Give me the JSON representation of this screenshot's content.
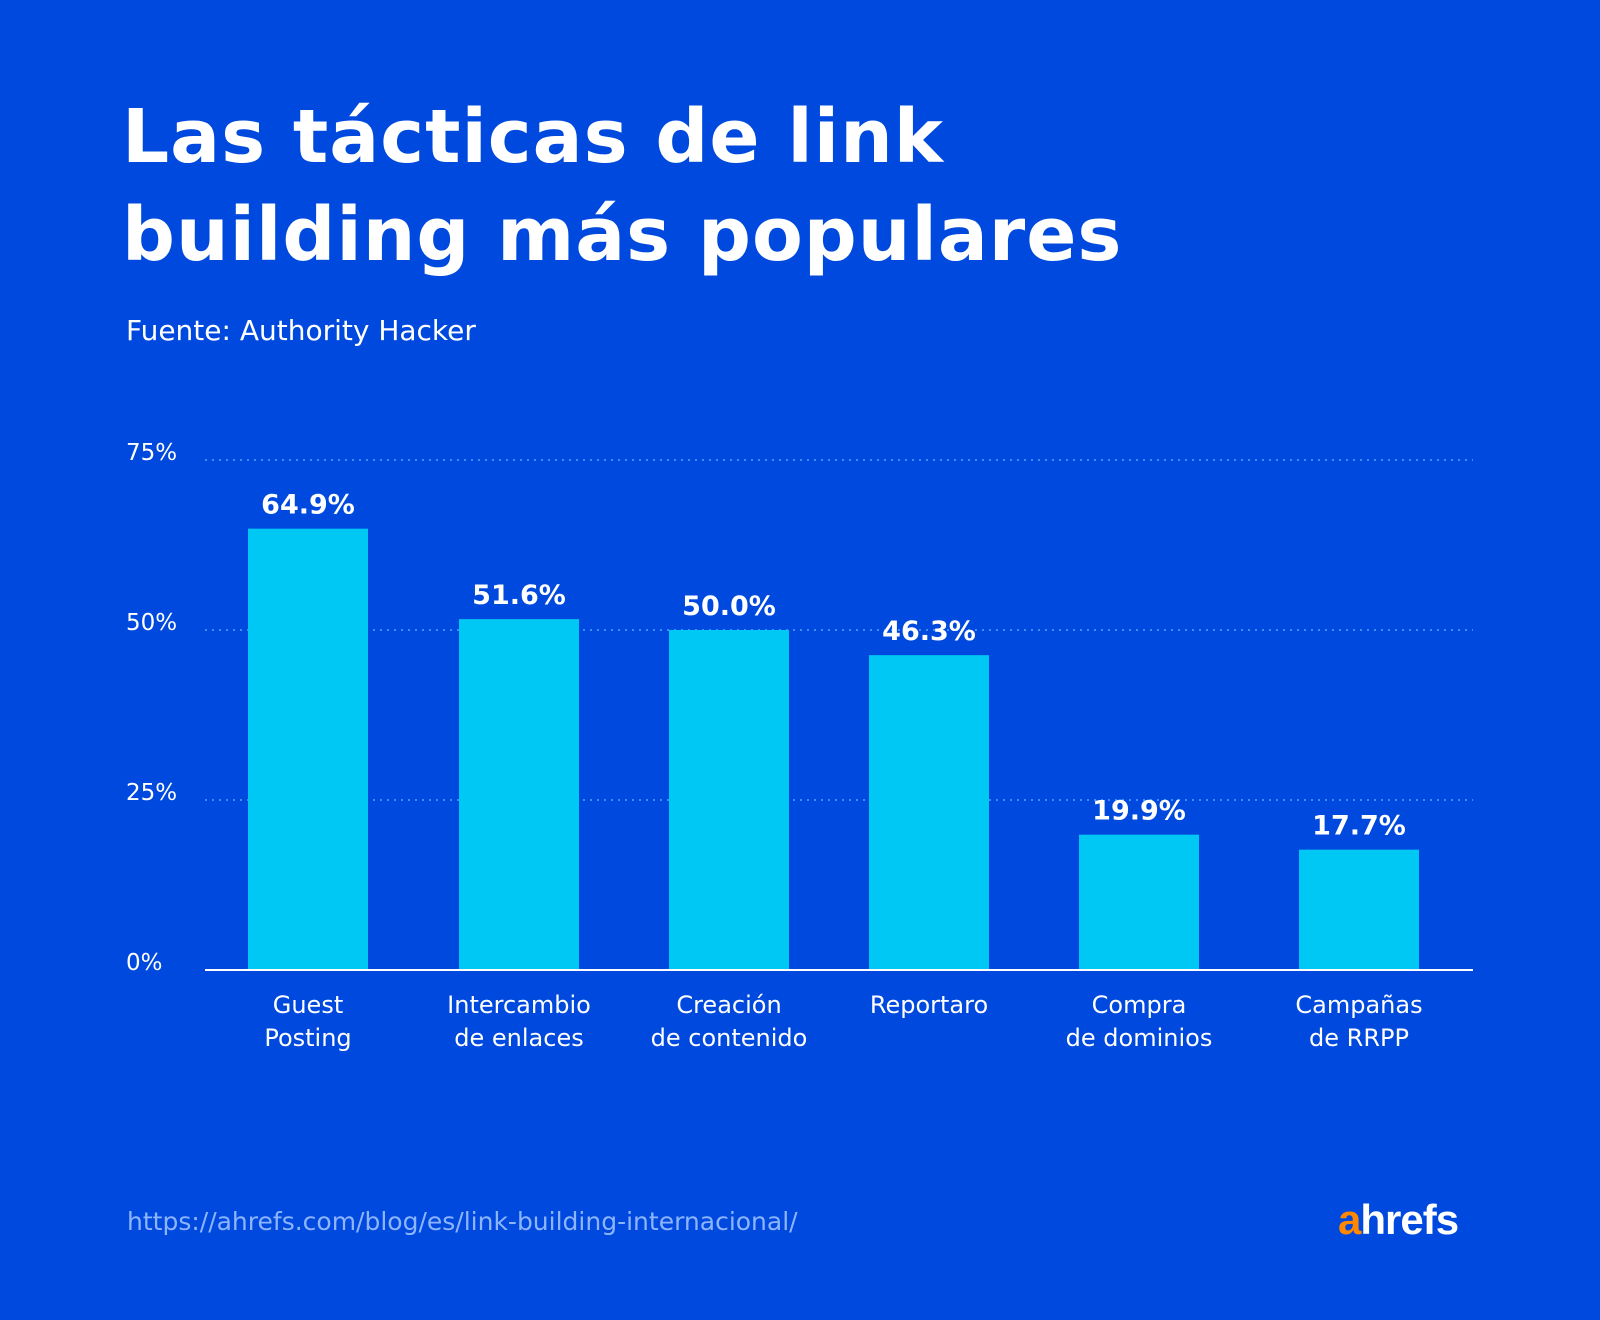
{
  "title_lines": [
    "Las tácticas de link",
    "building más populares"
  ],
  "subtitle": "Fuente: Authority Hacker",
  "footer": {
    "url": "https://ahrefs.com/blog/es/link-building-internacional/",
    "logo_a": "a",
    "logo_rest": "hrefs"
  },
  "colors": {
    "background": "#0049de",
    "bar": "#00c8f4",
    "grid": "#3f8cff",
    "logo_accent": "#ff8800"
  },
  "chart_data": {
    "type": "bar",
    "categories": [
      [
        "Guest",
        "Posting"
      ],
      [
        "Intercambio",
        "de enlaces"
      ],
      [
        "Creación",
        "de contenido"
      ],
      [
        "Reportaro"
      ],
      [
        "Compra",
        "de dominios"
      ],
      [
        "Campañas",
        "de RRPP"
      ]
    ],
    "values": [
      64.9,
      51.6,
      50.0,
      46.3,
      19.9,
      17.7
    ],
    "data_labels": [
      "64.9%",
      "51.6%",
      "50.0%",
      "46.3%",
      "19.9%",
      "17.7%"
    ],
    "yticks": [
      0,
      25,
      50,
      75
    ],
    "ytick_labels": [
      "0%",
      "25%",
      "50%",
      "75%"
    ],
    "ylim": [
      0,
      75
    ],
    "grid": "dotted horizontal",
    "title": "Las tácticas de link building más populares"
  }
}
